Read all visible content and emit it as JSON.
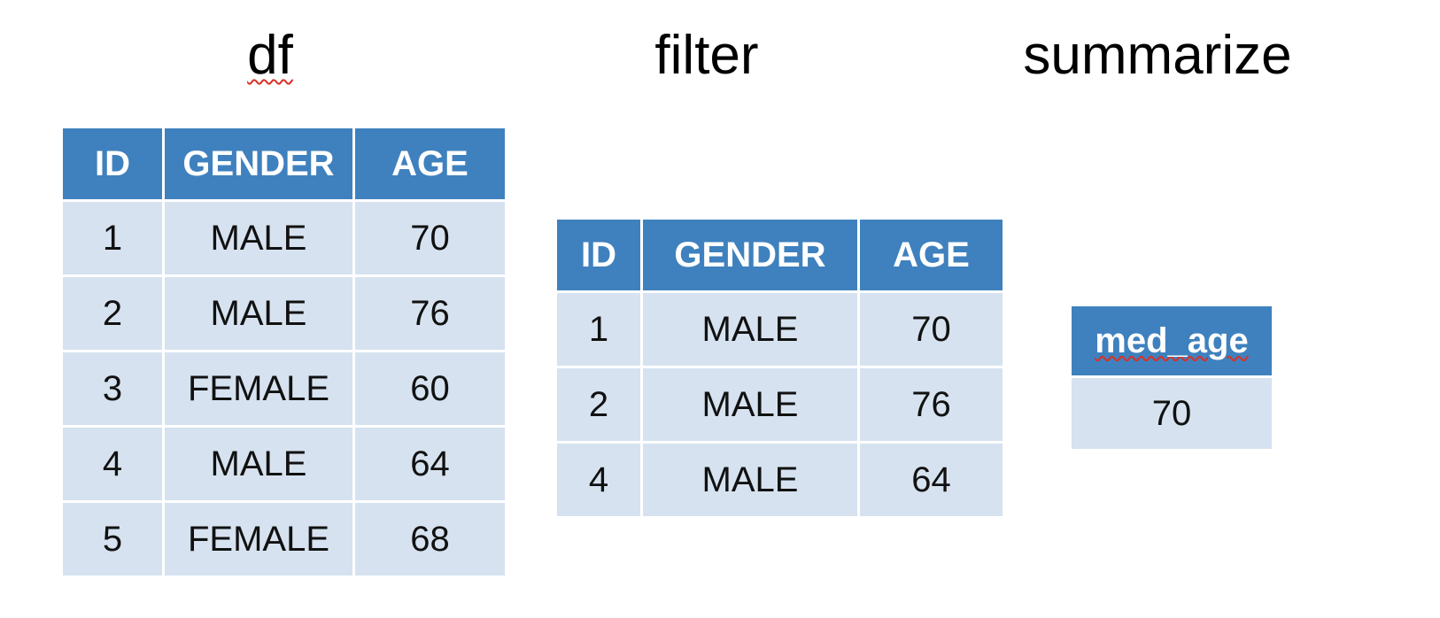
{
  "titles": {
    "df": "df",
    "filter": "filter",
    "summarize": "summarize"
  },
  "headers": [
    "ID",
    "GENDER",
    "AGE"
  ],
  "df_rows": [
    {
      "id": "1",
      "gender": "MALE",
      "age": "70"
    },
    {
      "id": "2",
      "gender": "MALE",
      "age": "76"
    },
    {
      "id": "3",
      "gender": "FEMALE",
      "age": "60"
    },
    {
      "id": "4",
      "gender": "MALE",
      "age": "64"
    },
    {
      "id": "5",
      "gender": "FEMALE",
      "age": "68"
    }
  ],
  "filter_rows": [
    {
      "id": "1",
      "gender": "MALE",
      "age": "70"
    },
    {
      "id": "2",
      "gender": "MALE",
      "age": "76"
    },
    {
      "id": "4",
      "gender": "MALE",
      "age": "64"
    }
  ],
  "summary": {
    "header": "med_age",
    "value": "70"
  },
  "colors": {
    "header_bg": "#3f81be",
    "cell_bg": "#d6e2ef",
    "spellcheck_underline": "#d93025"
  }
}
